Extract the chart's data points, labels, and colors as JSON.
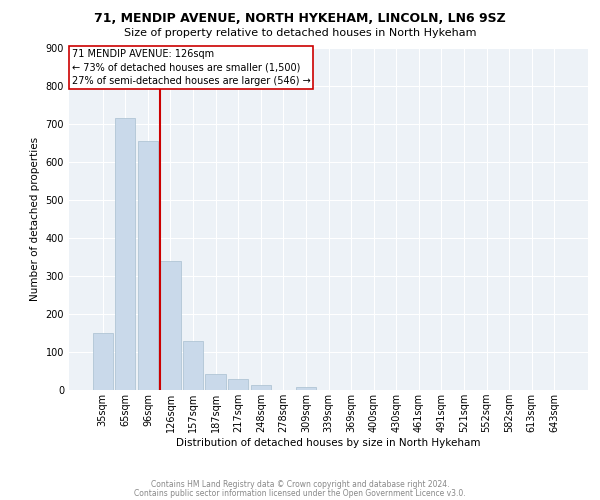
{
  "title1": "71, MENDIP AVENUE, NORTH HYKEHAM, LINCOLN, LN6 9SZ",
  "title2": "Size of property relative to detached houses in North Hykeham",
  "xlabel": "Distribution of detached houses by size in North Hykeham",
  "ylabel": "Number of detached properties",
  "bar_labels": [
    "35sqm",
    "65sqm",
    "96sqm",
    "126sqm",
    "157sqm",
    "187sqm",
    "217sqm",
    "248sqm",
    "278sqm",
    "309sqm",
    "339sqm",
    "369sqm",
    "400sqm",
    "430sqm",
    "461sqm",
    "491sqm",
    "521sqm",
    "552sqm",
    "582sqm",
    "613sqm",
    "643sqm"
  ],
  "bar_values": [
    150,
    715,
    655,
    340,
    130,
    42,
    28,
    12,
    0,
    8,
    0,
    0,
    0,
    0,
    0,
    0,
    0,
    0,
    0,
    0,
    0
  ],
  "bar_color": "#c9d9ea",
  "bar_edge_color": "#a8bfcf",
  "vline_index": 3,
  "vline_color": "#cc0000",
  "annotation_line1": "71 MENDIP AVENUE: 126sqm",
  "annotation_line2": "← 73% of detached houses are smaller (1,500)",
  "annotation_line3": "27% of semi-detached houses are larger (546) →",
  "ylim": [
    0,
    900
  ],
  "yticks": [
    0,
    100,
    200,
    300,
    400,
    500,
    600,
    700,
    800,
    900
  ],
  "footnote1": "Contains HM Land Registry data © Crown copyright and database right 2024.",
  "footnote2": "Contains public sector information licensed under the Open Government Licence v3.0.",
  "bg_color": "#edf2f7",
  "grid_color": "#ffffff",
  "annotation_box_facecolor": "#ffffff",
  "annotation_box_edgecolor": "#cc0000",
  "title_fontsize": 9,
  "subtitle_fontsize": 8,
  "axis_label_fontsize": 7.5,
  "tick_fontsize": 7,
  "annotation_fontsize": 7,
  "footnote_fontsize": 5.5,
  "ylabel_fontsize": 7.5
}
